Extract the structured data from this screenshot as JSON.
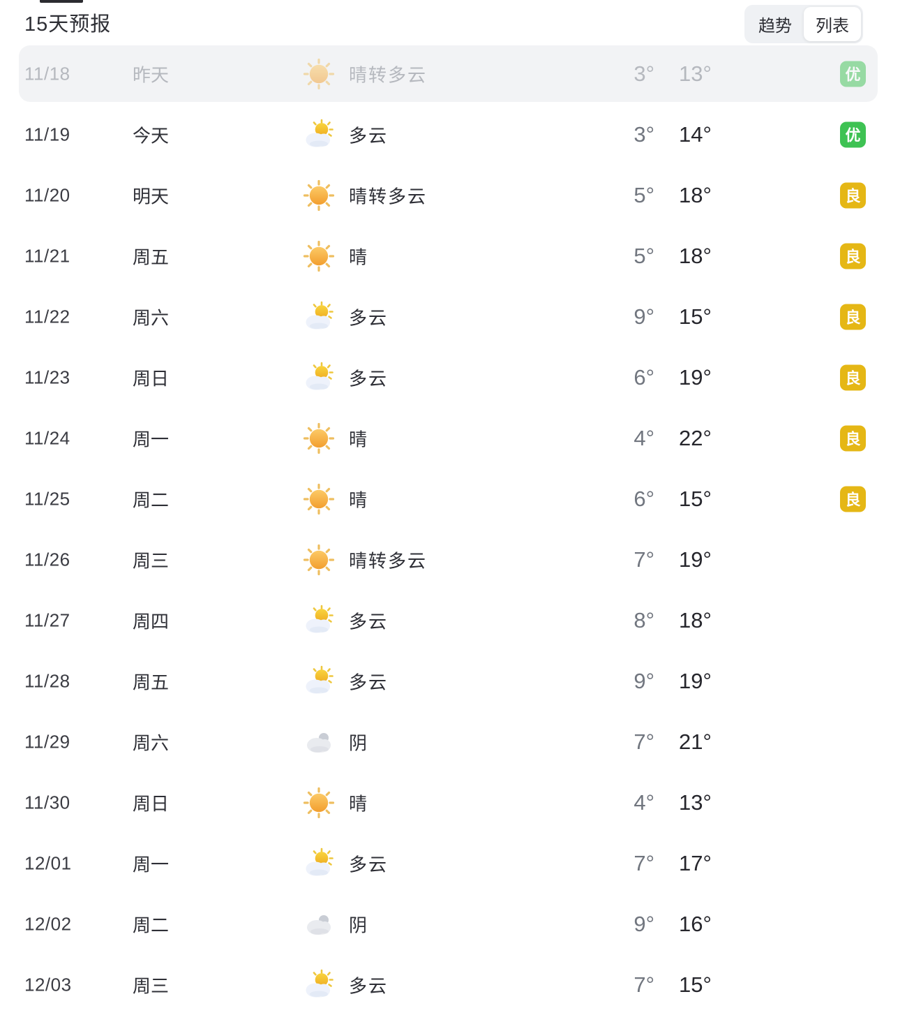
{
  "header": {
    "title": "15天预报",
    "view_toggle": {
      "options": [
        {
          "label": "趋势",
          "selected": false
        },
        {
          "label": "列表",
          "selected": true
        }
      ]
    }
  },
  "colors": {
    "aqi_excellent": "#3ec253",
    "aqi_good": "#e5b715",
    "past_row_bg": "#f2f3f5"
  },
  "rows": [
    {
      "date": "11/18",
      "day": "昨天",
      "icon": "sun-icon",
      "desc": "晴转多云",
      "low": "3°",
      "high": "13°",
      "aqi": "优",
      "aqi_level": "excellent",
      "past": true
    },
    {
      "date": "11/19",
      "day": "今天",
      "icon": "sun-cloud-icon",
      "desc": "多云",
      "low": "3°",
      "high": "14°",
      "aqi": "优",
      "aqi_level": "excellent",
      "past": false
    },
    {
      "date": "11/20",
      "day": "明天",
      "icon": "sun-icon",
      "desc": "晴转多云",
      "low": "5°",
      "high": "18°",
      "aqi": "良",
      "aqi_level": "good",
      "past": false
    },
    {
      "date": "11/21",
      "day": "周五",
      "icon": "sun-icon",
      "desc": "晴",
      "low": "5°",
      "high": "18°",
      "aqi": "良",
      "aqi_level": "good",
      "past": false
    },
    {
      "date": "11/22",
      "day": "周六",
      "icon": "sun-cloud-icon",
      "desc": "多云",
      "low": "9°",
      "high": "15°",
      "aqi": "良",
      "aqi_level": "good",
      "past": false
    },
    {
      "date": "11/23",
      "day": "周日",
      "icon": "sun-cloud-icon",
      "desc": "多云",
      "low": "6°",
      "high": "19°",
      "aqi": "良",
      "aqi_level": "good",
      "past": false
    },
    {
      "date": "11/24",
      "day": "周一",
      "icon": "sun-icon",
      "desc": "晴",
      "low": "4°",
      "high": "22°",
      "aqi": "良",
      "aqi_level": "good",
      "past": false
    },
    {
      "date": "11/25",
      "day": "周二",
      "icon": "sun-icon",
      "desc": "晴",
      "low": "6°",
      "high": "15°",
      "aqi": "良",
      "aqi_level": "good",
      "past": false
    },
    {
      "date": "11/26",
      "day": "周三",
      "icon": "sun-icon",
      "desc": "晴转多云",
      "low": "7°",
      "high": "19°",
      "aqi": "",
      "aqi_level": "",
      "past": false
    },
    {
      "date": "11/27",
      "day": "周四",
      "icon": "sun-cloud-icon",
      "desc": "多云",
      "low": "8°",
      "high": "18°",
      "aqi": "",
      "aqi_level": "",
      "past": false
    },
    {
      "date": "11/28",
      "day": "周五",
      "icon": "sun-cloud-icon",
      "desc": "多云",
      "low": "9°",
      "high": "19°",
      "aqi": "",
      "aqi_level": "",
      "past": false
    },
    {
      "date": "11/29",
      "day": "周六",
      "icon": "cloud-icon",
      "desc": "阴",
      "low": "7°",
      "high": "21°",
      "aqi": "",
      "aqi_level": "",
      "past": false
    },
    {
      "date": "11/30",
      "day": "周日",
      "icon": "sun-icon",
      "desc": "晴",
      "low": "4°",
      "high": "13°",
      "aqi": "",
      "aqi_level": "",
      "past": false
    },
    {
      "date": "12/01",
      "day": "周一",
      "icon": "sun-cloud-icon",
      "desc": "多云",
      "low": "7°",
      "high": "17°",
      "aqi": "",
      "aqi_level": "",
      "past": false
    },
    {
      "date": "12/02",
      "day": "周二",
      "icon": "cloud-icon",
      "desc": "阴",
      "low": "9°",
      "high": "16°",
      "aqi": "",
      "aqi_level": "",
      "past": false
    },
    {
      "date": "12/03",
      "day": "周三",
      "icon": "sun-cloud-icon",
      "desc": "多云",
      "low": "7°",
      "high": "15°",
      "aqi": "",
      "aqi_level": "",
      "past": false
    }
  ]
}
